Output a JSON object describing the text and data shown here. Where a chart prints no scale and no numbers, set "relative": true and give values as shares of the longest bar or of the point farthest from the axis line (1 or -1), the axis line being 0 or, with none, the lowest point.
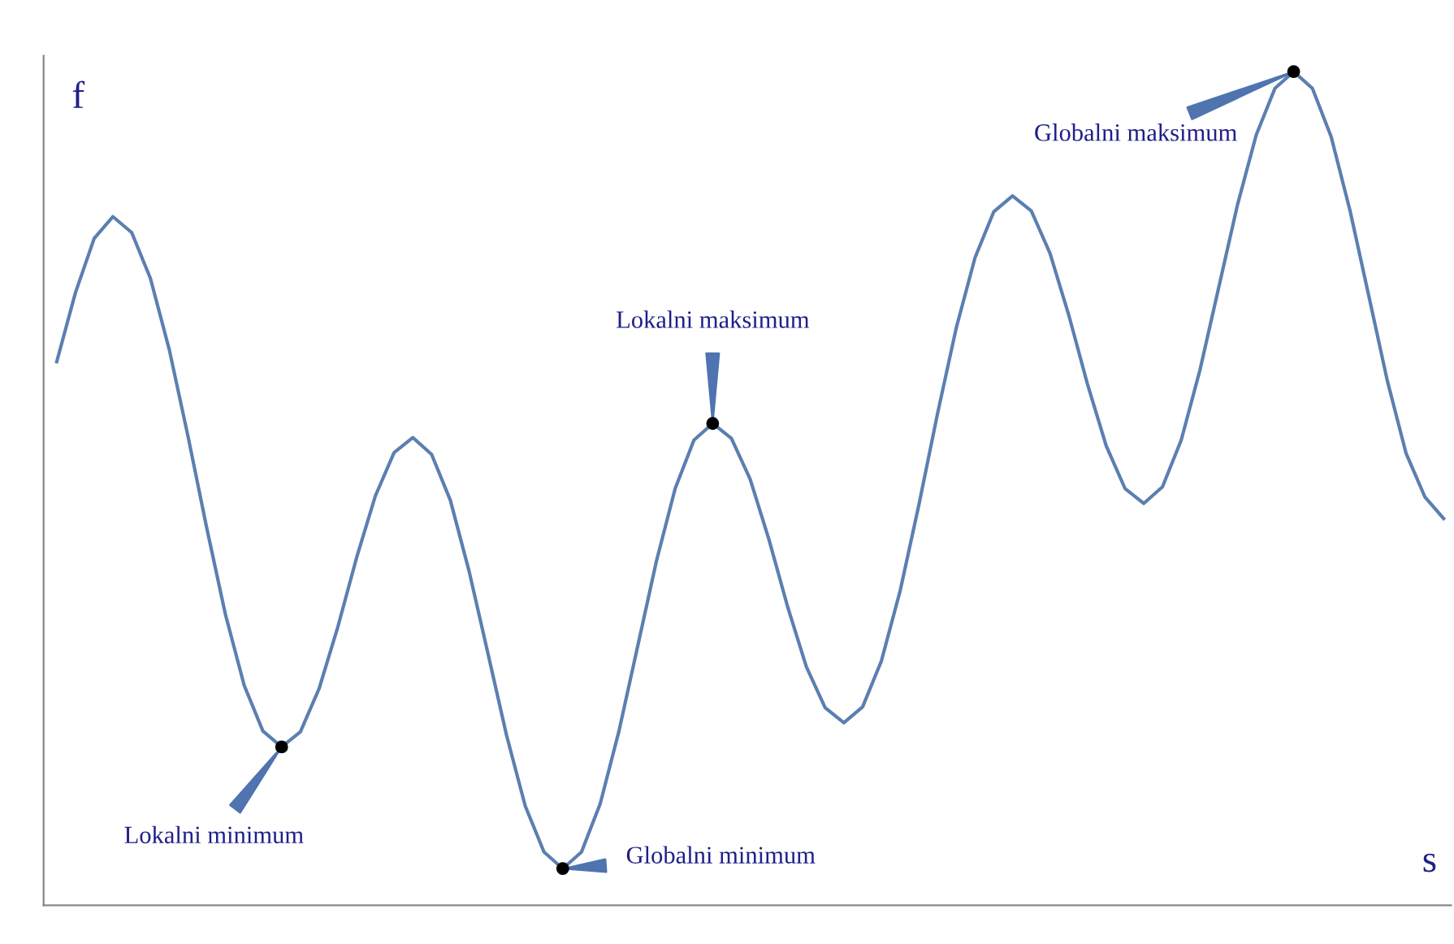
{
  "chart_data": {
    "type": "line",
    "relative": true,
    "xlabel": "s",
    "ylabel": "f",
    "categories": [
      null,
      null,
      null,
      null,
      null,
      null,
      null,
      null,
      null,
      null,
      null,
      null,
      null,
      null,
      null,
      null,
      null,
      null,
      null,
      null,
      null,
      null,
      null,
      null,
      null,
      null,
      null,
      null,
      null,
      null,
      null,
      null,
      null,
      null,
      null,
      null,
      null,
      null,
      null,
      null,
      null,
      null,
      null,
      null,
      null,
      null,
      null,
      null,
      null,
      null,
      null,
      null,
      null,
      null,
      null,
      null,
      null,
      null,
      null,
      null,
      null,
      null,
      null,
      null,
      null,
      null,
      null,
      null,
      null,
      null,
      null,
      null,
      null,
      null,
      null
    ],
    "series": [
      {
        "color": "#5b7fb0",
        "values": [
          0.652,
          0.735,
          0.8,
          0.826,
          0.807,
          0.752,
          0.667,
          0.563,
          0.453,
          0.349,
          0.264,
          0.209,
          0.19,
          0.208,
          0.26,
          0.334,
          0.417,
          0.491,
          0.543,
          0.561,
          0.541,
          0.486,
          0.401,
          0.303,
          0.204,
          0.119,
          0.064,
          0.044,
          0.064,
          0.122,
          0.209,
          0.311,
          0.413,
          0.5,
          0.558,
          0.578,
          0.56,
          0.511,
          0.439,
          0.358,
          0.286,
          0.237,
          0.219,
          0.238,
          0.293,
          0.377,
          0.48,
          0.59,
          0.693,
          0.777,
          0.832,
          0.851,
          0.833,
          0.782,
          0.708,
          0.625,
          0.551,
          0.5,
          0.482,
          0.502,
          0.558,
          0.642,
          0.741,
          0.84,
          0.924,
          0.98,
          1.0,
          0.98,
          0.922,
          0.834,
          0.732,
          0.629,
          0.542,
          0.49,
          0.464
        ]
      }
    ],
    "annotations": [
      "Lokalni minimum",
      "Globalni minimum",
      "Lokalni maksimum",
      "Globalni maksimum"
    ],
    "grid": false,
    "legend": false
  }
}
